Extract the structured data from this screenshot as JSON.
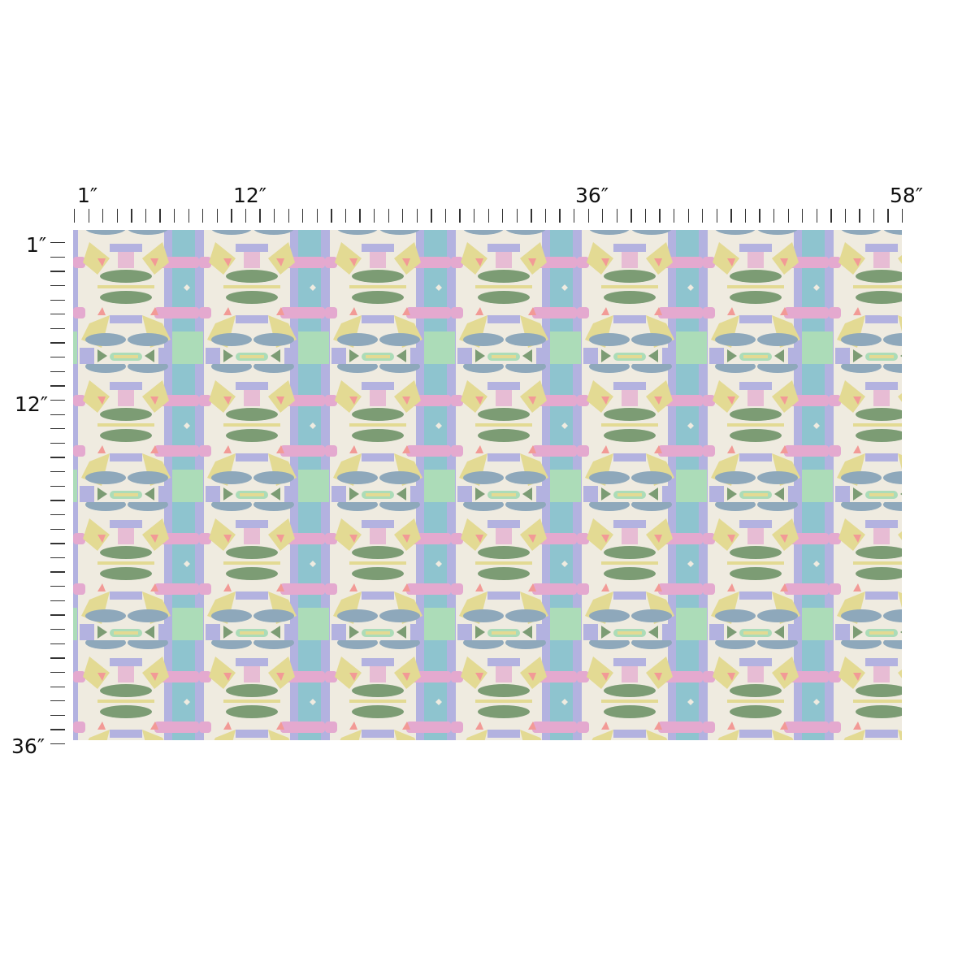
{
  "ruler": {
    "top_labels": [
      "1″",
      "12″",
      "36″",
      "58″"
    ],
    "left_labels": [
      "1″",
      "12″",
      "36″"
    ]
  },
  "swatch": {
    "colors": {
      "cream": "#efebe0",
      "sage_green": "#7c9c74",
      "sky_blue": "#8ec4cf",
      "pink": "#e4a9cf",
      "lavender": "#b3b2e0",
      "butter_yellow": "#e3da93",
      "blue_gray": "#8ea8bb",
      "mint": "#acdcb8",
      "coral": "#f29a96"
    }
  }
}
